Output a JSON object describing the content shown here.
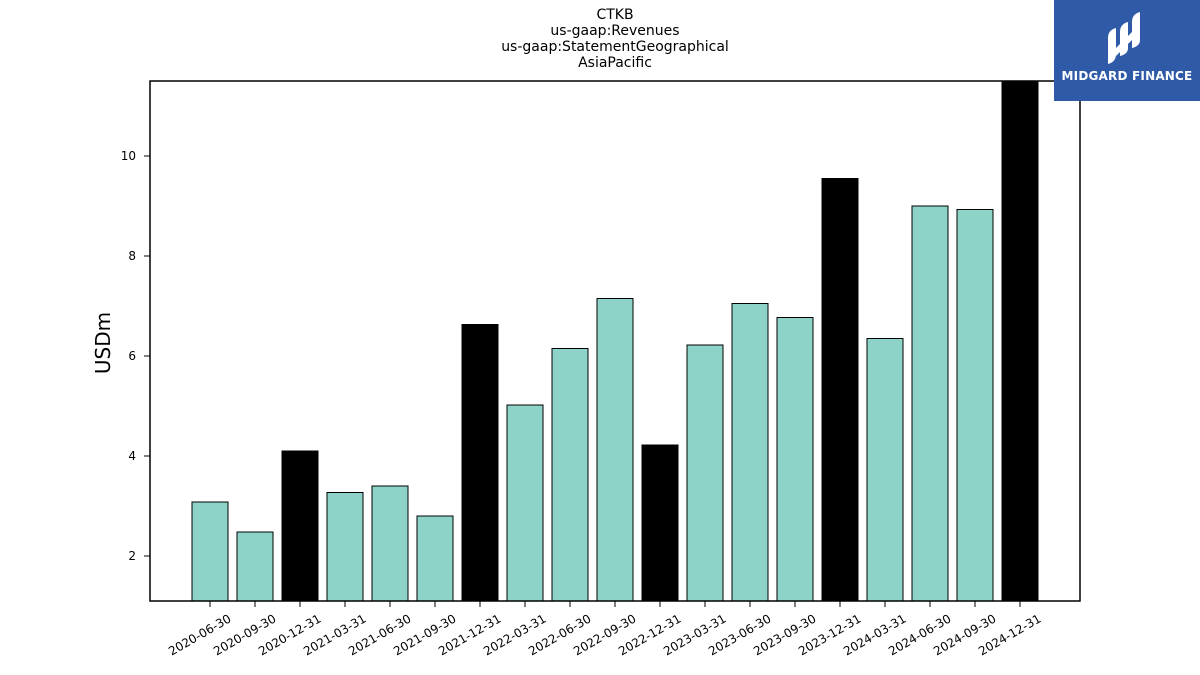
{
  "chart_data": {
    "type": "bar",
    "title_lines": [
      "CTKB",
      "us-gaap:Revenues",
      "us-gaap:StatementGeographical",
      "AsiaPacific"
    ],
    "xlabel": "",
    "ylabel": "USDm",
    "ylim": [
      1.1,
      11.5
    ],
    "yticks": [
      2,
      4,
      6,
      8,
      10
    ],
    "grid": false,
    "categories": [
      "2020-06-30",
      "2020-09-30",
      "2020-12-31",
      "2021-03-31",
      "2021-06-30",
      "2021-09-30",
      "2021-12-31",
      "2022-03-31",
      "2022-06-30",
      "2022-09-30",
      "2022-12-31",
      "2023-03-31",
      "2023-06-30",
      "2023-09-30",
      "2023-12-31",
      "2024-03-31",
      "2024-06-30",
      "2024-09-30",
      "2024-12-31"
    ],
    "values": [
      3.08,
      2.48,
      4.1,
      3.27,
      3.4,
      2.8,
      6.63,
      5.02,
      6.15,
      7.15,
      4.22,
      6.22,
      7.05,
      6.77,
      9.55,
      6.35,
      9.0,
      8.93,
      11.5
    ],
    "highlight": [
      false,
      false,
      true,
      false,
      false,
      false,
      true,
      false,
      false,
      false,
      true,
      false,
      false,
      false,
      true,
      false,
      false,
      false,
      true
    ],
    "colors": {
      "bar": "#8dd3c7",
      "highlight": "#000000",
      "edge": "#000000"
    }
  },
  "logo": {
    "text": "MIDGARD FINANCE",
    "background": "#2f5aa8"
  }
}
